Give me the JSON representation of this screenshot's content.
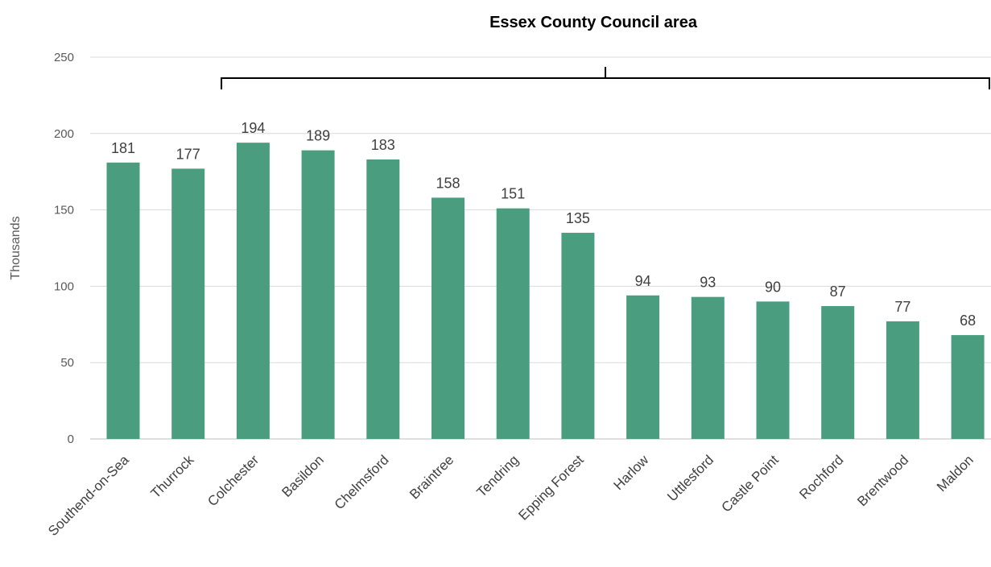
{
  "chart_data": {
    "type": "bar",
    "categories": [
      "Southend-on-Sea",
      "Thurrock",
      "Colchester",
      "Basildon",
      "Chelmsford",
      "Braintree",
      "Tendring",
      "Epping Forest",
      "Harlow",
      "Uttlesford",
      "Castle Point",
      "Rochford",
      "Brentwood",
      "Maldon"
    ],
    "values": [
      181,
      177,
      194,
      189,
      183,
      158,
      151,
      135,
      94,
      93,
      90,
      87,
      77,
      68
    ],
    "data_labels": [
      "181",
      "177",
      "194",
      "189",
      "183",
      "158",
      "151",
      "135",
      "94",
      "93",
      "90",
      "87",
      "77",
      "68"
    ],
    "ylabel": "Thousands",
    "ylim": [
      0,
      250
    ],
    "yticks": [
      0,
      50,
      100,
      150,
      200,
      250
    ],
    "ytick_labels": [
      "0",
      "50",
      "100",
      "150",
      "200",
      "250"
    ],
    "grid": true,
    "bar_color": "#4a9e7f",
    "annotation": {
      "text": "Essex County Council area",
      "spans_categories": [
        "Colchester",
        "Maldon"
      ]
    }
  }
}
